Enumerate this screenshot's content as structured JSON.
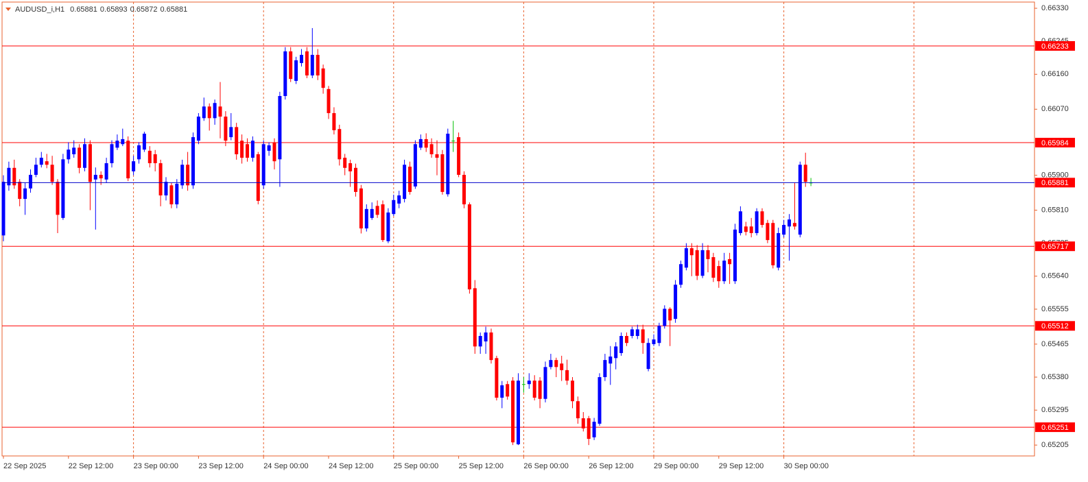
{
  "chart_data": {
    "type": "candlestick",
    "title": "AUDUSD_i,H1",
    "categories": [
      "22 Sep 2025",
      null,
      null,
      null,
      null,
      null,
      null,
      null,
      null,
      null,
      null,
      null,
      "22 Sep 12:00",
      null,
      null,
      null,
      null,
      null,
      null,
      null,
      null,
      null,
      null,
      null,
      "23 Sep 00:00",
      null,
      null,
      null,
      null,
      null,
      null,
      null,
      null,
      null,
      null,
      null,
      "23 Sep 12:00",
      null,
      null,
      null,
      null,
      null,
      null,
      null,
      null,
      null,
      null,
      null,
      "24 Sep 00:00",
      null,
      null,
      null,
      null,
      null,
      null,
      null,
      null,
      null,
      null,
      null,
      "24 Sep 12:00",
      null,
      null,
      null,
      null,
      null,
      null,
      null,
      null,
      null,
      null,
      null,
      "25 Sep 00:00",
      null,
      null,
      null,
      null,
      null,
      null,
      null,
      null,
      null,
      null,
      null,
      "25 Sep 12:00",
      null,
      null,
      null,
      null,
      null,
      null,
      null,
      null,
      null,
      null,
      null,
      "26 Sep 00:00",
      null,
      null,
      null,
      null,
      null,
      null,
      null,
      null,
      null,
      null,
      null,
      "26 Sep 12:00",
      null,
      null,
      null,
      null,
      null,
      null,
      null,
      null,
      null,
      null,
      null,
      "29 Sep 00:00",
      null,
      null,
      null,
      null,
      null,
      null,
      null,
      null,
      null,
      null,
      null,
      "29 Sep 12:00",
      null,
      null,
      null,
      null,
      null,
      null,
      null,
      null,
      null,
      null,
      null,
      "30 Sep 00:00",
      null,
      null,
      null,
      null,
      null
    ],
    "ohlc": [
      [
        0.65745,
        0.659,
        0.6573,
        0.65883
      ],
      [
        0.65874,
        0.65935,
        0.6586,
        0.65919
      ],
      [
        0.65919,
        0.6594,
        0.65865,
        0.65874
      ],
      [
        0.65883,
        0.6589,
        0.6582,
        0.65839
      ],
      [
        0.65839,
        0.6588,
        0.65798,
        0.65866
      ],
      [
        0.65866,
        0.65915,
        0.65855,
        0.65901
      ],
      [
        0.65901,
        0.65945,
        0.65895,
        0.65927
      ],
      [
        0.65927,
        0.6596,
        0.6592,
        0.65945
      ],
      [
        0.65936,
        0.65955,
        0.65918,
        0.65927
      ],
      [
        0.65927,
        0.6595,
        0.65875,
        0.65883
      ],
      [
        0.65883,
        0.6589,
        0.65751,
        0.65798
      ],
      [
        0.6579,
        0.65955,
        0.65785,
        0.65941
      ],
      [
        0.65941,
        0.65985,
        0.6593,
        0.65966
      ],
      [
        0.65954,
        0.6599,
        0.65945,
        0.65971
      ],
      [
        0.65971,
        0.6598,
        0.65905,
        0.65919
      ],
      [
        0.65919,
        0.65995,
        0.6591,
        0.6598
      ],
      [
        0.6598,
        0.6599,
        0.6581,
        0.65883
      ],
      [
        0.65889,
        0.6592,
        0.6576,
        0.65901
      ],
      [
        0.65901,
        0.6591,
        0.65875,
        0.65892
      ],
      [
        0.65889,
        0.65945,
        0.6588,
        0.65931
      ],
      [
        0.65931,
        0.6599,
        0.6592,
        0.6598
      ],
      [
        0.65971,
        0.66005,
        0.65965,
        0.65989
      ],
      [
        0.6598,
        0.6602,
        0.65975,
        0.65993
      ],
      [
        0.65989,
        0.66,
        0.65885,
        0.65892
      ],
      [
        0.6591,
        0.6595,
        0.659,
        0.65936
      ],
      [
        0.65941,
        0.65985,
        0.6593,
        0.65977
      ],
      [
        0.65966,
        0.66012,
        0.6596,
        0.66007
      ],
      [
        0.65963,
        0.65975,
        0.6592,
        0.65931
      ],
      [
        0.65954,
        0.65965,
        0.6591,
        0.65931
      ],
      [
        0.65931,
        0.6594,
        0.6582,
        0.65848
      ],
      [
        0.65848,
        0.65895,
        0.65835,
        0.65883
      ],
      [
        0.65874,
        0.6588,
        0.65815,
        0.65825
      ],
      [
        0.65825,
        0.6589,
        0.65815,
        0.65878
      ],
      [
        0.65874,
        0.6594,
        0.65865,
        0.65927
      ],
      [
        0.65927,
        0.6596,
        0.6586,
        0.65874
      ],
      [
        0.65874,
        0.6601,
        0.65865,
        0.65998
      ],
      [
        0.65989,
        0.6606,
        0.6598,
        0.66051
      ],
      [
        0.66047,
        0.661,
        0.6604,
        0.66077
      ],
      [
        0.66077,
        0.66085,
        0.66015,
        0.66047
      ],
      [
        0.66047,
        0.66095,
        0.6603,
        0.66086
      ],
      [
        0.66077,
        0.6614,
        0.65995,
        0.66051
      ],
      [
        0.66051,
        0.66065,
        0.65975,
        0.65989
      ],
      [
        0.65998,
        0.6606,
        0.6599,
        0.66024
      ],
      [
        0.66024,
        0.66035,
        0.6594,
        0.65954
      ],
      [
        0.65989,
        0.66005,
        0.6593,
        0.65945
      ],
      [
        0.6598,
        0.65995,
        0.65935,
        0.65945
      ],
      [
        0.65945,
        0.66,
        0.65935,
        0.65989
      ],
      [
        0.65954,
        0.6596,
        0.65825,
        0.65834
      ],
      [
        0.65874,
        0.6599,
        0.65865,
        0.6598
      ],
      [
        0.65963,
        0.65985,
        0.6595,
        0.65977
      ],
      [
        0.65984,
        0.65995,
        0.65915,
        0.65936
      ],
      [
        0.65941,
        0.66115,
        0.6587,
        0.66104
      ],
      [
        0.66104,
        0.6623,
        0.66095,
        0.66219
      ],
      [
        0.66219,
        0.6623,
        0.6614,
        0.66148
      ],
      [
        0.66143,
        0.66205,
        0.66135,
        0.66196
      ],
      [
        0.66189,
        0.66225,
        0.6618,
        0.6621
      ],
      [
        0.66219,
        0.6623,
        0.6615,
        0.66157
      ],
      [
        0.66157,
        0.66279,
        0.6615,
        0.6621
      ],
      [
        0.6621,
        0.66225,
        0.66145,
        0.66157
      ],
      [
        0.66175,
        0.66185,
        0.6611,
        0.66125
      ],
      [
        0.66122,
        0.6613,
        0.66045,
        0.6606
      ],
      [
        0.6606,
        0.66075,
        0.66005,
        0.66016
      ],
      [
        0.66019,
        0.6603,
        0.65925,
        0.65941
      ],
      [
        0.65945,
        0.65955,
        0.659,
        0.65919
      ],
      [
        0.65931,
        0.6594,
        0.6587,
        0.6591
      ],
      [
        0.65919,
        0.6593,
        0.65845,
        0.65857
      ],
      [
        0.65866,
        0.65875,
        0.6575,
        0.65763
      ],
      [
        0.65763,
        0.65825,
        0.65755,
        0.65813
      ],
      [
        0.6579,
        0.6583,
        0.65785,
        0.65813
      ],
      [
        0.65821,
        0.65835,
        0.6579,
        0.65798
      ],
      [
        0.65825,
        0.65835,
        0.65728,
        0.65733
      ],
      [
        0.6573,
        0.65815,
        0.65725,
        0.65804
      ],
      [
        0.658,
        0.6585,
        0.65795,
        0.65836
      ],
      [
        0.65827,
        0.6586,
        0.65815,
        0.65848
      ],
      [
        0.65839,
        0.6594,
        0.6583,
        0.65927
      ],
      [
        0.65922,
        0.65935,
        0.6585,
        0.65857
      ],
      [
        0.65871,
        0.6599,
        0.65865,
        0.6598
      ],
      [
        0.65971,
        0.66005,
        0.65965,
        0.65993
      ],
      [
        0.65993,
        0.66008,
        0.6596,
        0.65971
      ],
      [
        0.6598,
        0.65995,
        0.65945,
        0.65954
      ],
      [
        0.65954,
        0.6599,
        0.659,
        0.65945
      ],
      [
        0.65954,
        0.65965,
        0.6585,
        0.65857
      ],
      [
        0.65851,
        0.6602,
        0.65845,
        0.66007
      ],
      [
        0.65989,
        0.6604,
        0.6596,
        0.65989
      ],
      [
        0.65998,
        0.6601,
        0.65895,
        0.65901
      ],
      [
        0.65901,
        0.6591,
        0.65815,
        0.65825
      ],
      [
        0.65825,
        0.6583,
        0.65595,
        0.65606
      ],
      [
        0.65609,
        0.6563,
        0.6544,
        0.65459
      ],
      [
        0.65459,
        0.65495,
        0.6544,
        0.65486
      ],
      [
        0.65472,
        0.6551,
        0.6544,
        0.65495
      ],
      [
        0.65495,
        0.65505,
        0.65415,
        0.65424
      ],
      [
        0.65429,
        0.65435,
        0.6532,
        0.65327
      ],
      [
        0.65327,
        0.6537,
        0.653,
        0.65359
      ],
      [
        0.65362,
        0.6537,
        0.65322,
        0.6533
      ],
      [
        0.65371,
        0.6538,
        0.65205,
        0.65212
      ],
      [
        0.65207,
        0.6539,
        0.65205,
        0.65371
      ],
      [
        0.65362,
        0.6538,
        0.6534,
        0.65362
      ],
      [
        0.65362,
        0.6539,
        0.6535,
        0.65371
      ],
      [
        0.65371,
        0.65385,
        0.6532,
        0.65327
      ],
      [
        0.65371,
        0.6538,
        0.653,
        0.65324
      ],
      [
        0.65324,
        0.6542,
        0.65315,
        0.65406
      ],
      [
        0.65406,
        0.6544,
        0.654,
        0.65424
      ],
      [
        0.65424,
        0.6543,
        0.6538,
        0.65406
      ],
      [
        0.65415,
        0.65435,
        0.6537,
        0.65398
      ],
      [
        0.65398,
        0.65425,
        0.6536,
        0.65371
      ],
      [
        0.65371,
        0.6538,
        0.653,
        0.65318
      ],
      [
        0.65318,
        0.6533,
        0.6526,
        0.65274
      ],
      [
        0.65274,
        0.6529,
        0.6524,
        0.65248
      ],
      [
        0.65274,
        0.6528,
        0.65205,
        0.65221
      ],
      [
        0.65225,
        0.65275,
        0.65218,
        0.65265
      ],
      [
        0.6526,
        0.6539,
        0.65255,
        0.6538
      ],
      [
        0.6538,
        0.6544,
        0.6537,
        0.65424
      ],
      [
        0.65415,
        0.6546,
        0.6536,
        0.65433
      ],
      [
        0.65429,
        0.6547,
        0.654,
        0.65459
      ],
      [
        0.65442,
        0.65495,
        0.65435,
        0.65486
      ],
      [
        0.65486,
        0.65495,
        0.6546,
        0.65468
      ],
      [
        0.65486,
        0.6551,
        0.6548,
        0.65503
      ],
      [
        0.65486,
        0.65515,
        0.65478,
        0.65503
      ],
      [
        0.65503,
        0.65515,
        0.6544,
        0.65468
      ],
      [
        0.65401,
        0.6548,
        0.65395,
        0.65468
      ],
      [
        0.65465,
        0.6549,
        0.6546,
        0.65477
      ],
      [
        0.65468,
        0.6552,
        0.6546,
        0.65512
      ],
      [
        0.65512,
        0.65565,
        0.65505,
        0.65556
      ],
      [
        0.65556,
        0.6556,
        0.6546,
        0.65526
      ],
      [
        0.6553,
        0.6563,
        0.6552,
        0.65618
      ],
      [
        0.65618,
        0.6568,
        0.6561,
        0.65671
      ],
      [
        0.65662,
        0.65725,
        0.65655,
        0.65712
      ],
      [
        0.65712,
        0.65725,
        0.6564,
        0.65694
      ],
      [
        0.65707,
        0.6572,
        0.6563,
        0.65641
      ],
      [
        0.65641,
        0.65725,
        0.65635,
        0.65707
      ],
      [
        0.65707,
        0.6572,
        0.6565,
        0.65684
      ],
      [
        0.65689,
        0.657,
        0.65625,
        0.65636
      ],
      [
        0.65666,
        0.6568,
        0.6561,
        0.65627
      ],
      [
        0.65627,
        0.657,
        0.6562,
        0.6568
      ],
      [
        0.65684,
        0.657,
        0.6562,
        0.65671
      ],
      [
        0.65627,
        0.65775,
        0.6562,
        0.6576
      ],
      [
        0.65751,
        0.6582,
        0.65745,
        0.65807
      ],
      [
        0.65768,
        0.6578,
        0.65745,
        0.65754
      ],
      [
        0.65768,
        0.6579,
        0.6574,
        0.65751
      ],
      [
        0.65751,
        0.65815,
        0.65745,
        0.65807
      ],
      [
        0.65807,
        0.65815,
        0.65765,
        0.65772
      ],
      [
        0.65777,
        0.65785,
        0.65725,
        0.65733
      ],
      [
        0.65777,
        0.65785,
        0.6566,
        0.65668
      ],
      [
        0.65662,
        0.65765,
        0.65655,
        0.65751
      ],
      [
        0.65747,
        0.65785,
        0.6574,
        0.65772
      ],
      [
        0.65768,
        0.658,
        0.6568,
        0.65786
      ],
      [
        0.65777,
        0.6588,
        0.6576,
        0.65768
      ],
      [
        0.65747,
        0.65935,
        0.6574,
        0.65927
      ],
      [
        0.65927,
        0.65958,
        0.6587,
        0.65883
      ],
      [
        0.65881,
        0.65893,
        0.65872,
        0.65881
      ]
    ],
    "ylim": [
      0.65177,
      0.66346
    ],
    "yticks": [
      {
        "value": 0.6633,
        "label": "0.66330"
      },
      0.66245,
      {
        "value": 0.6616,
        "label": "0.66160"
      },
      {
        "value": 0.6607,
        "label": "0.66070"
      },
      {
        "value": 0.659,
        "label": "0.65900"
      },
      {
        "value": 0.6581,
        "label": "0.65810"
      },
      0.65725,
      {
        "value": 0.6564,
        "label": "0.65640"
      },
      0.65555,
      0.65465,
      {
        "value": 0.6538,
        "label": "0.65380"
      },
      0.65295,
      0.65205
    ],
    "levels": [
      0.66233,
      0.65984,
      0.65717,
      0.65512,
      0.65251
    ],
    "level_color": "#ff0000",
    "bid_color": "#0000cc",
    "up_color": "#0000ff",
    "down_color": "#ff0000",
    "doji_color": "#00c000",
    "frame_color": "#e8602c"
  }
}
